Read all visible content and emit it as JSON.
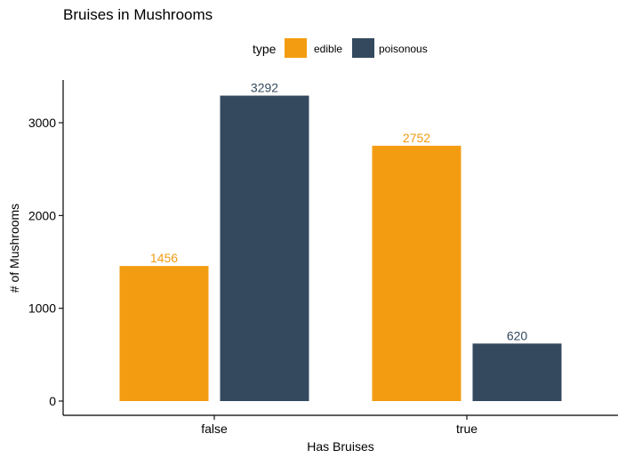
{
  "chart_data": {
    "type": "bar",
    "title": "Bruises in Mushrooms",
    "xlabel": "Has Bruises",
    "ylabel": "# of Mushrooms",
    "categories": [
      "false",
      "true"
    ],
    "ylim": [
      0,
      3450
    ],
    "yticks": [
      0,
      1000,
      2000,
      3000
    ],
    "legend": {
      "title": "type",
      "position": "top"
    },
    "series": [
      {
        "name": "edible",
        "color": "#f39c12",
        "values": [
          1456,
          2752
        ]
      },
      {
        "name": "poisonous",
        "color": "#34495e",
        "values": [
          3292,
          620
        ]
      }
    ],
    "grid": false
  }
}
